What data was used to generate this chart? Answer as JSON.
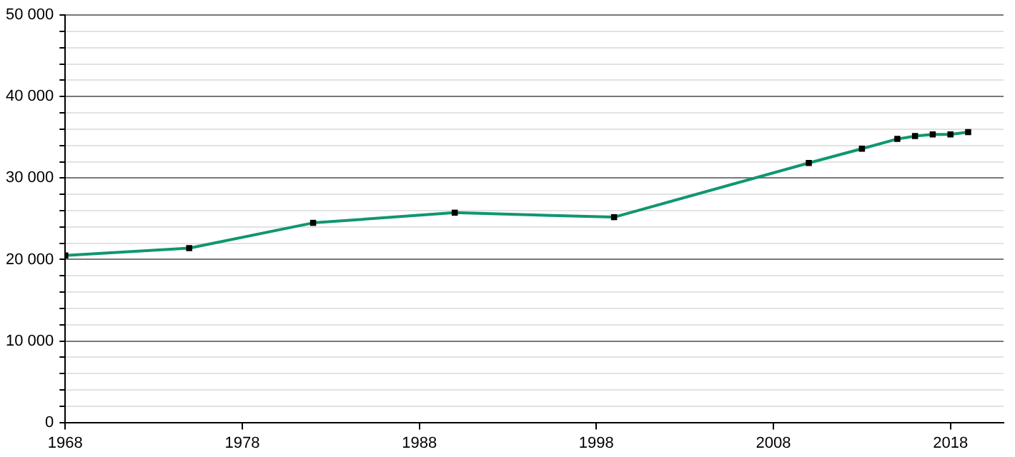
{
  "chart_data": {
    "type": "line",
    "x": [
      1968,
      1975,
      1982,
      1990,
      1999,
      2010,
      2013,
      2015,
      2016,
      2017,
      2018,
      2019
    ],
    "series": [
      {
        "color": "#109670",
        "values": [
          20500,
          21400,
          24500,
          25750,
          25200,
          31850,
          33600,
          34800,
          35150,
          35350,
          35350,
          35650
        ]
      }
    ],
    "xlim": [
      1968,
      2021
    ],
    "xticks": [
      1968,
      1978,
      1988,
      1998,
      2008,
      2018
    ],
    "ylim": [
      0,
      50000
    ],
    "yticks": [
      {
        "value": 0,
        "label": "0"
      },
      {
        "value": 2000,
        "label": null
      },
      {
        "value": 4000,
        "label": null
      },
      {
        "value": 6000,
        "label": null
      },
      {
        "value": 8000,
        "label": null
      },
      {
        "value": 10000,
        "label": "10 000"
      },
      {
        "value": 12000,
        "label": null
      },
      {
        "value": 14000,
        "label": null
      },
      {
        "value": 16000,
        "label": null
      },
      {
        "value": 18000,
        "label": null
      },
      {
        "value": 20000,
        "label": "20 000"
      },
      {
        "value": 22000,
        "label": null
      },
      {
        "value": 24000,
        "label": null
      },
      {
        "value": 26000,
        "label": null
      },
      {
        "value": 28000,
        "label": null
      },
      {
        "value": 30000,
        "label": "30 000"
      },
      {
        "value": 32000,
        "label": null
      },
      {
        "value": 34000,
        "label": null
      },
      {
        "value": 36000,
        "label": null
      },
      {
        "value": 38000,
        "label": null
      },
      {
        "value": 40000,
        "label": "40 000"
      },
      {
        "value": 42000,
        "label": null
      },
      {
        "value": 44000,
        "label": null
      },
      {
        "value": 46000,
        "label": null
      },
      {
        "value": 48000,
        "label": null
      },
      {
        "value": 50000,
        "label": "50 000"
      }
    ],
    "grid": "y",
    "marker": "square",
    "line_style": "solid",
    "legend": false
  }
}
